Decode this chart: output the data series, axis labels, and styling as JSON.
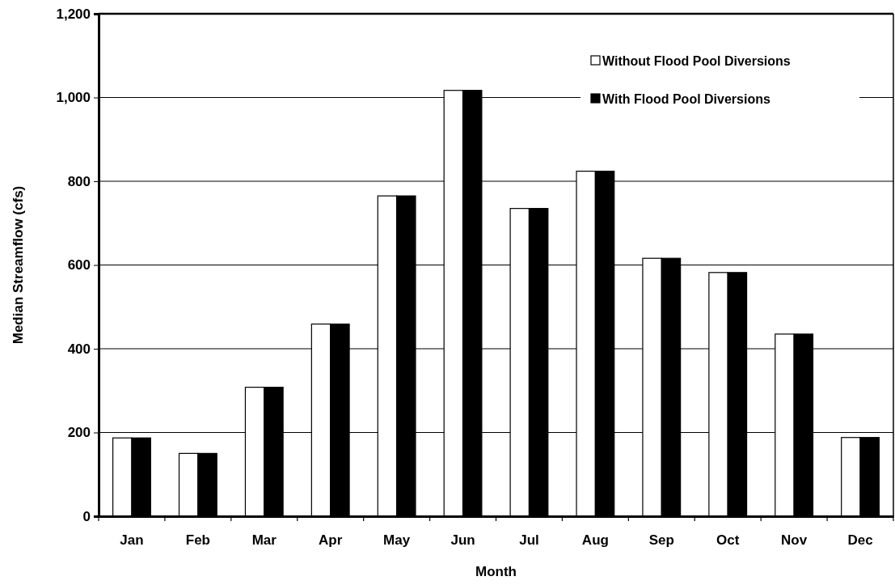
{
  "chart_data": {
    "type": "bar",
    "xlabel": "Month",
    "ylabel": "Median Streamflow (cfs)",
    "categories": [
      "Jan",
      "Feb",
      "Mar",
      "Apr",
      "May",
      "Jun",
      "Jul",
      "Aug",
      "Sep",
      "Oct",
      "Nov",
      "Dec"
    ],
    "series": [
      {
        "name": "Without Flood Pool Diversions",
        "color": "#ffffff",
        "values": [
          187,
          150,
          308,
          459,
          765,
          1017,
          735,
          824,
          616,
          582,
          435,
          188
        ]
      },
      {
        "name": "With Flood Pool Diversions",
        "color": "#000000",
        "values": [
          187,
          150,
          308,
          459,
          765,
          1017,
          735,
          824,
          616,
          582,
          435,
          188
        ]
      }
    ],
    "ylim": [
      0,
      1200
    ],
    "yticks": [
      0,
      200,
      400,
      600,
      800,
      {
        "value": 1000,
        "label": "1,000"
      },
      {
        "value": 1200,
        "label": "1,200"
      }
    ],
    "grid": "y",
    "legend": "top right"
  }
}
